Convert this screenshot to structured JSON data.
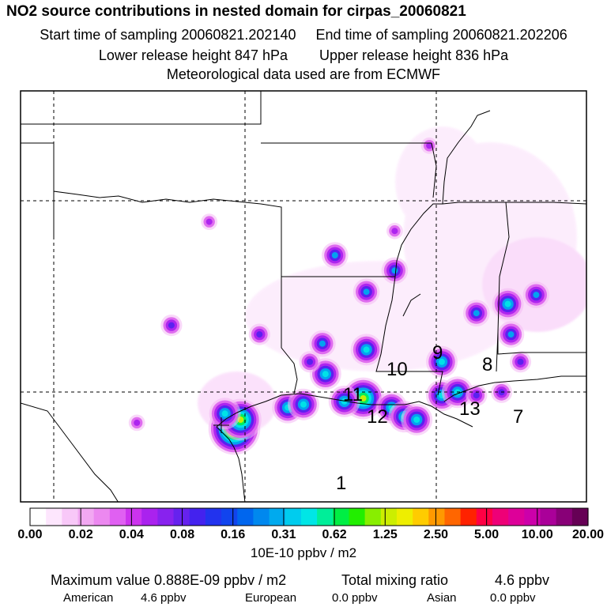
{
  "header": {
    "title": "NO2 source contributions in nested domain for cirpas_20060821",
    "start_label": "Start time of sampling 20060821.202140",
    "end_label": "End time of sampling 20060821.202206",
    "lower_label": "Lower release height  847 hPa",
    "upper_label": "Upper release height  836 hPa",
    "met_label": "Meteorological data used are from ECMWF"
  },
  "chart_data": {
    "type": "heatmap",
    "title": "NO2 source contributions in nested domain for cirpas_20060821",
    "region_labels": [
      "1",
      "7",
      "8",
      "9",
      "10",
      "11",
      "12",
      "13"
    ],
    "colorbar": {
      "tick_labels": [
        "0.00",
        "0.02",
        "0.04",
        "0.08",
        "0.16",
        "0.31",
        "0.62",
        "1.25",
        "2.50",
        "5.00",
        "10.00",
        "20.00"
      ],
      "unit": "10E-10 ppbv / m2",
      "colors": [
        "#ffffff",
        "#fde6fd",
        "#f8c8f8",
        "#f2a8f2",
        "#ec88f0",
        "#e060f2",
        "#cc33ee",
        "#aa22ee",
        "#8822ee",
        "#6622ee",
        "#4422ee",
        "#2233ee",
        "#1144ee",
        "#0066ee",
        "#0088ee",
        "#00aaee",
        "#00ccee",
        "#00e6e6",
        "#00ee99",
        "#00ee44",
        "#22ee00",
        "#88ee00",
        "#ccee00",
        "#eeee00",
        "#ffcc00",
        "#ff9900",
        "#ff6600",
        "#ff2200",
        "#ff0044",
        "#ee0077",
        "#dd0099",
        "#cc00aa",
        "#aa0099",
        "#880077",
        "#660055"
      ],
      "hotspot_scale": [
        "#f4b8f4",
        "#dd66ee",
        "#aa22ee",
        "#5522ee",
        "#00aaee",
        "#00e6e6",
        "#00ee55",
        "#ccee00",
        "#ffcc00",
        "#ff2200"
      ]
    },
    "hotspots": [
      {
        "x": -95.2,
        "y": 29.4,
        "v": 9
      },
      {
        "x": -95.0,
        "y": 29.7,
        "v": 7
      },
      {
        "x": -95.5,
        "y": 29.9,
        "v": 5
      },
      {
        "x": -93.5,
        "y": 30.1,
        "v": 5
      },
      {
        "x": -93.0,
        "y": 30.2,
        "v": 5
      },
      {
        "x": -91.1,
        "y": 30.4,
        "v": 7
      },
      {
        "x": -91.7,
        "y": 30.3,
        "v": 5
      },
      {
        "x": -90.2,
        "y": 30.1,
        "v": 5
      },
      {
        "x": -89.8,
        "y": 29.8,
        "v": 5
      },
      {
        "x": -89.4,
        "y": 29.7,
        "v": 5
      },
      {
        "x": -88.6,
        "y": 30.5,
        "v": 5
      },
      {
        "x": -88.1,
        "y": 30.6,
        "v": 5
      },
      {
        "x": -92.3,
        "y": 31.2,
        "v": 5
      },
      {
        "x": -91.0,
        "y": 32.0,
        "v": 5
      },
      {
        "x": -92.4,
        "y": 32.2,
        "v": 4
      },
      {
        "x": -88.6,
        "y": 31.6,
        "v": 5
      },
      {
        "x": -86.5,
        "y": 33.5,
        "v": 5
      },
      {
        "x": -85.6,
        "y": 33.8,
        "v": 4
      },
      {
        "x": -87.5,
        "y": 33.2,
        "v": 4
      },
      {
        "x": -90.1,
        "y": 34.6,
        "v": 4
      },
      {
        "x": -92.0,
        "y": 35.1,
        "v": 4
      },
      {
        "x": -91.0,
        "y": 33.9,
        "v": 4
      },
      {
        "x": -97.2,
        "y": 32.8,
        "v": 3
      },
      {
        "x": -86.4,
        "y": 32.5,
        "v": 4
      },
      {
        "x": -86.1,
        "y": 31.6,
        "v": 3
      },
      {
        "x": -90.1,
        "y": 35.9,
        "v": 2
      },
      {
        "x": -89.0,
        "y": 38.7,
        "v": 2
      },
      {
        "x": -94.4,
        "y": 32.5,
        "v": 3
      },
      {
        "x": -98.3,
        "y": 29.6,
        "v": 2
      },
      {
        "x": -96.0,
        "y": 36.2,
        "v": 2
      },
      {
        "x": -87.5,
        "y": 30.5,
        "v": 3
      },
      {
        "x": -86.7,
        "y": 30.6,
        "v": 3
      },
      {
        "x": -92.8,
        "y": 31.6,
        "v": 3
      }
    ],
    "summary": {
      "max_label": "Maximum value  0.888E-09 ppbv / m2",
      "total_label": "Total mixing ratio",
      "total_value": "4.6 ppbv",
      "american_label": "American",
      "american_value": "4.6 ppbv",
      "european_label": "European",
      "european_value": "0.0 ppbv",
      "asian_label": "Asian",
      "asian_value": "0.0 ppbv"
    }
  }
}
